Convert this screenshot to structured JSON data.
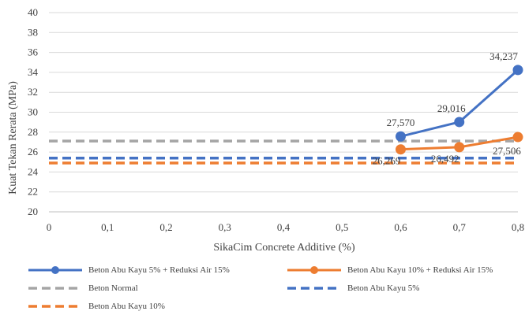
{
  "chart_data": {
    "type": "line",
    "title": "",
    "xlabel": "SikaCim Concrete Additive (%)",
    "ylabel": "Kuat Tekan Rerata (MPa)",
    "xlim": [
      0,
      0.8
    ],
    "ylim": [
      20,
      40
    ],
    "x_ticks": [
      "0",
      "0,1",
      "0,2",
      "0,3",
      "0,4",
      "0,5",
      "0,6",
      "0,7",
      "0,8"
    ],
    "y_ticks": [
      "20",
      "22",
      "24",
      "26",
      "28",
      "30",
      "32",
      "34",
      "36",
      "38",
      "40"
    ],
    "grid": "horizontal",
    "legend_position": "bottom",
    "series": [
      {
        "name": "Beton Abu Kayu 5% + Reduksi Air 15%",
        "color": "#4472C4",
        "style": "solid-markers",
        "x": [
          0.6,
          0.7,
          0.8
        ],
        "values": [
          27.57,
          29.016,
          34.237
        ],
        "labels": [
          "27,570",
          "29,016",
          "34,237"
        ]
      },
      {
        "name": "Beton Abu Kayu 10% + Reduksi Air 15%",
        "color": "#ED7D31",
        "style": "solid-markers",
        "x": [
          0.6,
          0.7,
          0.8
        ],
        "values": [
          26.269,
          26.492,
          27.506
        ],
        "labels": [
          "26,269",
          "26,492",
          "27,506"
        ]
      },
      {
        "name": "Beton Normal",
        "color": "#A5A5A5",
        "style": "dashed",
        "constant": 27.1
      },
      {
        "name": "Beton Abu Kayu 5%",
        "color": "#4472C4",
        "style": "dashed",
        "constant": 25.4
      },
      {
        "name": "Beton Abu Kayu 10%",
        "color": "#ED7D31",
        "style": "dashed",
        "constant": 24.9
      }
    ]
  }
}
